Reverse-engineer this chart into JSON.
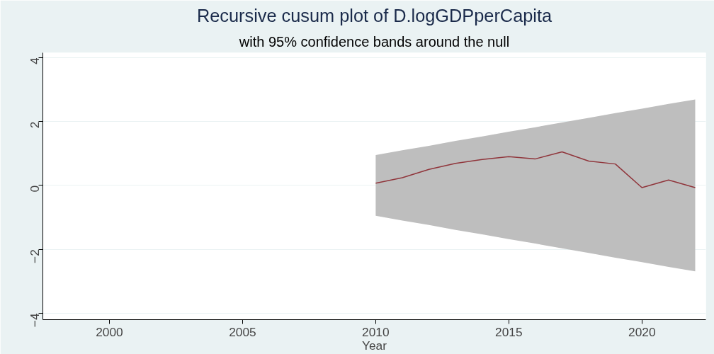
{
  "chart_data": {
    "type": "line",
    "title": "Recursive cusum plot of D.logGDPperCapita",
    "subtitle": "with 95% confidence bands around the null",
    "xlabel": "Year",
    "x": [
      2010,
      2011,
      2012,
      2013,
      2014,
      2015,
      2016,
      2017,
      2018,
      2019,
      2020,
      2021,
      2022
    ],
    "series": [
      {
        "color": "#90353b",
        "values": [
          0.07,
          0.24,
          0.5,
          0.69,
          0.81,
          0.9,
          0.83,
          1.05,
          0.76,
          0.67,
          -0.07,
          0.17,
          -0.07
        ],
        "lower": [
          -0.95,
          -1.1,
          -1.24,
          -1.39,
          -1.53,
          -1.68,
          -1.82,
          -1.97,
          -2.11,
          -2.26,
          -2.4,
          -2.55,
          -2.69
        ],
        "upper": [
          0.95,
          1.1,
          1.24,
          1.39,
          1.53,
          1.68,
          1.82,
          1.97,
          2.11,
          2.26,
          2.4,
          2.55,
          2.69
        ]
      }
    ],
    "xlim": [
      1997.5,
      2022.4
    ],
    "ylim": [
      -4.2,
      4.15
    ],
    "xticks": [
      2000,
      2005,
      2010,
      2015,
      2020
    ],
    "yticks": [
      -4,
      -2,
      0,
      2,
      4
    ],
    "grid": "y"
  }
}
